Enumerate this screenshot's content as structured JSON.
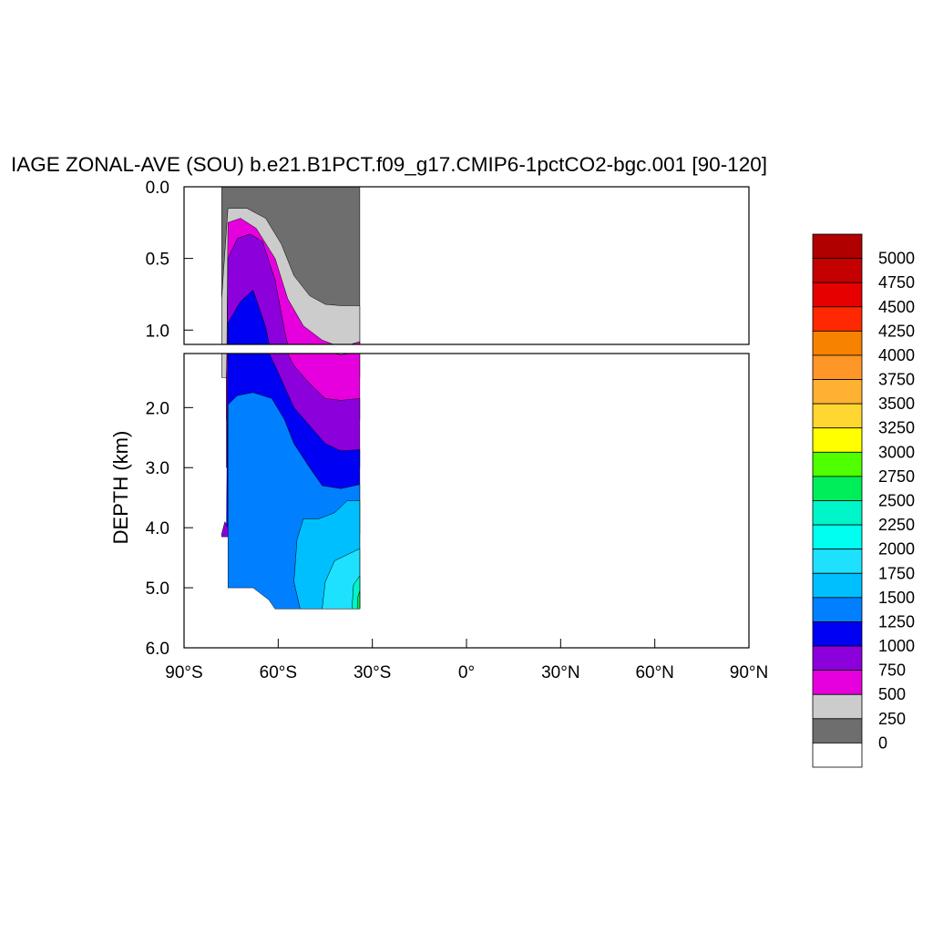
{
  "chart_data": {
    "type": "heatmap",
    "title": "IAGE ZONAL-AVE (SOU) b.e21.B1PCT.f09_g17.CMIP6-1pctCO2-bgc.001 [90-120]",
    "ylabel": "DEPTH (km)",
    "xlim": [
      -90,
      90
    ],
    "ylim": [
      0,
      6
    ],
    "y_inverted": true,
    "panels": [
      {
        "name": "upper",
        "ylim": [
          0,
          1.1
        ],
        "yticks": [
          0.0,
          0.5,
          1.0
        ],
        "ytick_labels": [
          "0.0",
          "0.5",
          "1.0"
        ]
      },
      {
        "name": "lower",
        "ylim": [
          1.1,
          6.0
        ],
        "yticks": [
          2.0,
          3.0,
          4.0,
          5.0,
          6.0
        ],
        "ytick_labels": [
          "2.0",
          "3.0",
          "4.0",
          "5.0",
          "6.0"
        ]
      }
    ],
    "xticks": [
      -90,
      -60,
      -30,
      0,
      30,
      60,
      90
    ],
    "xtick_labels": [
      "90°S",
      "60°S",
      "30°S",
      "0°",
      "30°N",
      "60°N",
      "90°N"
    ],
    "data_extent": {
      "lat_min": -78,
      "lat_max": -34,
      "max_depth_km": 5.35
    },
    "levels": [
      0,
      250,
      500,
      750,
      1000,
      1250,
      1500,
      1750,
      2000,
      2250,
      2500,
      2750,
      3000,
      3250,
      3500,
      3750,
      4000,
      4250,
      4500,
      4750,
      5000
    ],
    "colors": [
      "#ffffff",
      "#6e6e6e",
      "#cccccc",
      "#e600dd",
      "#8c00dc",
      "#0000f2",
      "#0080ff",
      "#00bfff",
      "#1ee1ff",
      "#00fff0",
      "#00f5c8",
      "#00ee5a",
      "#50ff00",
      "#ffff00",
      "#ffd730",
      "#ffb132",
      "#ff9628",
      "#f78200",
      "#ff2800",
      "#e60000",
      "#c40000",
      "#b10000"
    ],
    "regions": [
      {
        "label": "250",
        "color": "#6e6e6e",
        "polygon": [
          [
            -78,
            0
          ],
          [
            -34,
            0
          ],
          [
            -34,
            1.1
          ],
          [
            -78,
            1.1
          ]
        ]
      },
      {
        "label": "500",
        "color": "#cccccc",
        "polygon": [
          [
            -78,
            0.78
          ],
          [
            -76,
            0.15
          ],
          [
            -70,
            0.15
          ],
          [
            -64,
            0.22
          ],
          [
            -59,
            0.4
          ],
          [
            -55,
            0.62
          ],
          [
            -50,
            0.76
          ],
          [
            -45,
            0.82
          ],
          [
            -40,
            0.83
          ],
          [
            -34,
            0.83
          ],
          [
            -34,
            1.5
          ],
          [
            -78,
            1.5
          ]
        ]
      },
      {
        "label": "750",
        "color": "#e600dd",
        "polygon": [
          [
            -76.5,
            1.5
          ],
          [
            -76,
            0.25
          ],
          [
            -72,
            0.22
          ],
          [
            -67,
            0.29
          ],
          [
            -61,
            0.5
          ],
          [
            -57,
            0.78
          ],
          [
            -52,
            0.97
          ],
          [
            -46,
            1.07
          ],
          [
            -40,
            1.12
          ],
          [
            -34,
            1.08
          ],
          [
            -34,
            2.2
          ],
          [
            -76.5,
            2.2
          ]
        ]
      },
      {
        "label": "1000",
        "color": "#8c00dc",
        "polygon": [
          [
            -76.5,
            1.5
          ],
          [
            -76,
            0.5
          ],
          [
            -73,
            0.36
          ],
          [
            -69,
            0.33
          ],
          [
            -65,
            0.38
          ],
          [
            -61,
            0.65
          ],
          [
            -58,
            1.0
          ],
          [
            -55,
            1.3
          ],
          [
            -50,
            1.6
          ],
          [
            -45,
            1.85
          ],
          [
            -40,
            1.88
          ],
          [
            -34,
            1.85
          ],
          [
            -34,
            3.0
          ],
          [
            -76.5,
            3.0
          ]
        ]
      },
      {
        "label": "1250",
        "color": "#0000f2",
        "polygon": [
          [
            -76.5,
            4.1
          ],
          [
            -76,
            0.95
          ],
          [
            -72,
            0.8
          ],
          [
            -68,
            0.72
          ],
          [
            -64,
            0.98
          ],
          [
            -61,
            1.3
          ],
          [
            -58,
            1.65
          ],
          [
            -55,
            2.0
          ],
          [
            -50,
            2.3
          ],
          [
            -45,
            2.6
          ],
          [
            -40,
            2.72
          ],
          [
            -34,
            2.7
          ],
          [
            -34,
            4.1
          ]
        ]
      },
      {
        "label": "1500",
        "color": "#0080ff",
        "polygon": [
          [
            -76,
            5.0
          ],
          [
            -76,
            1.95
          ],
          [
            -73,
            1.8
          ],
          [
            -68,
            1.75
          ],
          [
            -62,
            1.85
          ],
          [
            -58,
            2.2
          ],
          [
            -55,
            2.6
          ],
          [
            -50,
            3.0
          ],
          [
            -46,
            3.3
          ],
          [
            -40,
            3.35
          ],
          [
            -34,
            3.28
          ],
          [
            -34,
            5.35
          ],
          [
            -61,
            5.35
          ],
          [
            -63,
            5.2
          ],
          [
            -68,
            5.0
          ]
        ]
      },
      {
        "label": "1750",
        "color": "#00bfff",
        "polygon": [
          [
            -53,
            5.35
          ],
          [
            -55,
            4.9
          ],
          [
            -54,
            4.2
          ],
          [
            -52,
            3.85
          ],
          [
            -47,
            3.85
          ],
          [
            -42,
            3.75
          ],
          [
            -38,
            3.55
          ],
          [
            -34,
            3.55
          ],
          [
            -34,
            5.35
          ]
        ]
      },
      {
        "label": "2000",
        "color": "#1ee1ff",
        "polygon": [
          [
            -46,
            5.35
          ],
          [
            -45,
            4.9
          ],
          [
            -42,
            4.55
          ],
          [
            -38,
            4.45
          ],
          [
            -34,
            4.35
          ],
          [
            -34,
            5.35
          ]
        ]
      },
      {
        "label": "2250",
        "color": "#00f5c8",
        "polygon": [
          [
            -36.5,
            5.35
          ],
          [
            -36,
            4.95
          ],
          [
            -34,
            4.8
          ],
          [
            -34,
            5.35
          ]
        ]
      },
      {
        "label": "2500",
        "color": "#00ee5a",
        "polygon": [
          [
            -34.8,
            5.35
          ],
          [
            -34.6,
            5.15
          ],
          [
            -34,
            5.05
          ],
          [
            -34,
            5.35
          ]
        ]
      },
      {
        "label": "1000",
        "color": "#8c00dc",
        "polygon": [
          [
            -78,
            4.1
          ],
          [
            -77,
            3.9
          ],
          [
            -76,
            4.0
          ],
          [
            -76,
            4.15
          ],
          [
            -78,
            4.15
          ]
        ]
      }
    ]
  }
}
